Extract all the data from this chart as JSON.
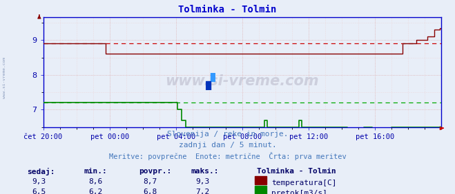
{
  "title": "Tolminka - Tolmin",
  "title_color": "#0000cc",
  "bg_color": "#e8eef8",
  "plot_bg_color": "#e8eef8",
  "grid_color_major": "#cc8888",
  "grid_color_minor": "#ddaaaa",
  "grid_color_vert": "#cc8888",
  "x_labels": [
    "čet 20:00",
    "pet 00:00",
    "pet 04:00",
    "pet 08:00",
    "pet 12:00",
    "pet 16:00"
  ],
  "ylim_min": 6.5,
  "ylim_max": 9.65,
  "y_ticks": [
    7,
    8,
    9
  ],
  "tick_color": "#0000aa",
  "spine_color": "#0000cc",
  "temp_color": "#880000",
  "flow_color": "#008800",
  "dashed_temp_color": "#cc0000",
  "dashed_flow_color": "#00aa00",
  "subtitle1": "Slovenija / reke in morje.",
  "subtitle2": "zadnji dan / 5 minut.",
  "subtitle3": "Meritve: povprečne  Enote: metrične  Črta: prva meritev",
  "subtitle_color": "#4477bb",
  "legend_title": "Tolminka - Tolmin",
  "legend_title_color": "#000066",
  "label_temp": "temperatura[C]",
  "label_flow": "pretok[m3/s]",
  "label_color": "#000066",
  "stats_headers": [
    "sedaj:",
    "min.:",
    "povpr.:",
    "maks.:"
  ],
  "stats_temp": [
    9.3,
    8.6,
    8.7,
    9.3
  ],
  "stats_flow": [
    6.5,
    6.2,
    6.8,
    7.2
  ],
  "stats_color": "#000066",
  "watermark": "www.si-vreme.com",
  "sidewmark": "www.si-vreme.com",
  "n_points": 289,
  "arrow_color": "#cc0000",
  "arrow_color_y": "#880000"
}
